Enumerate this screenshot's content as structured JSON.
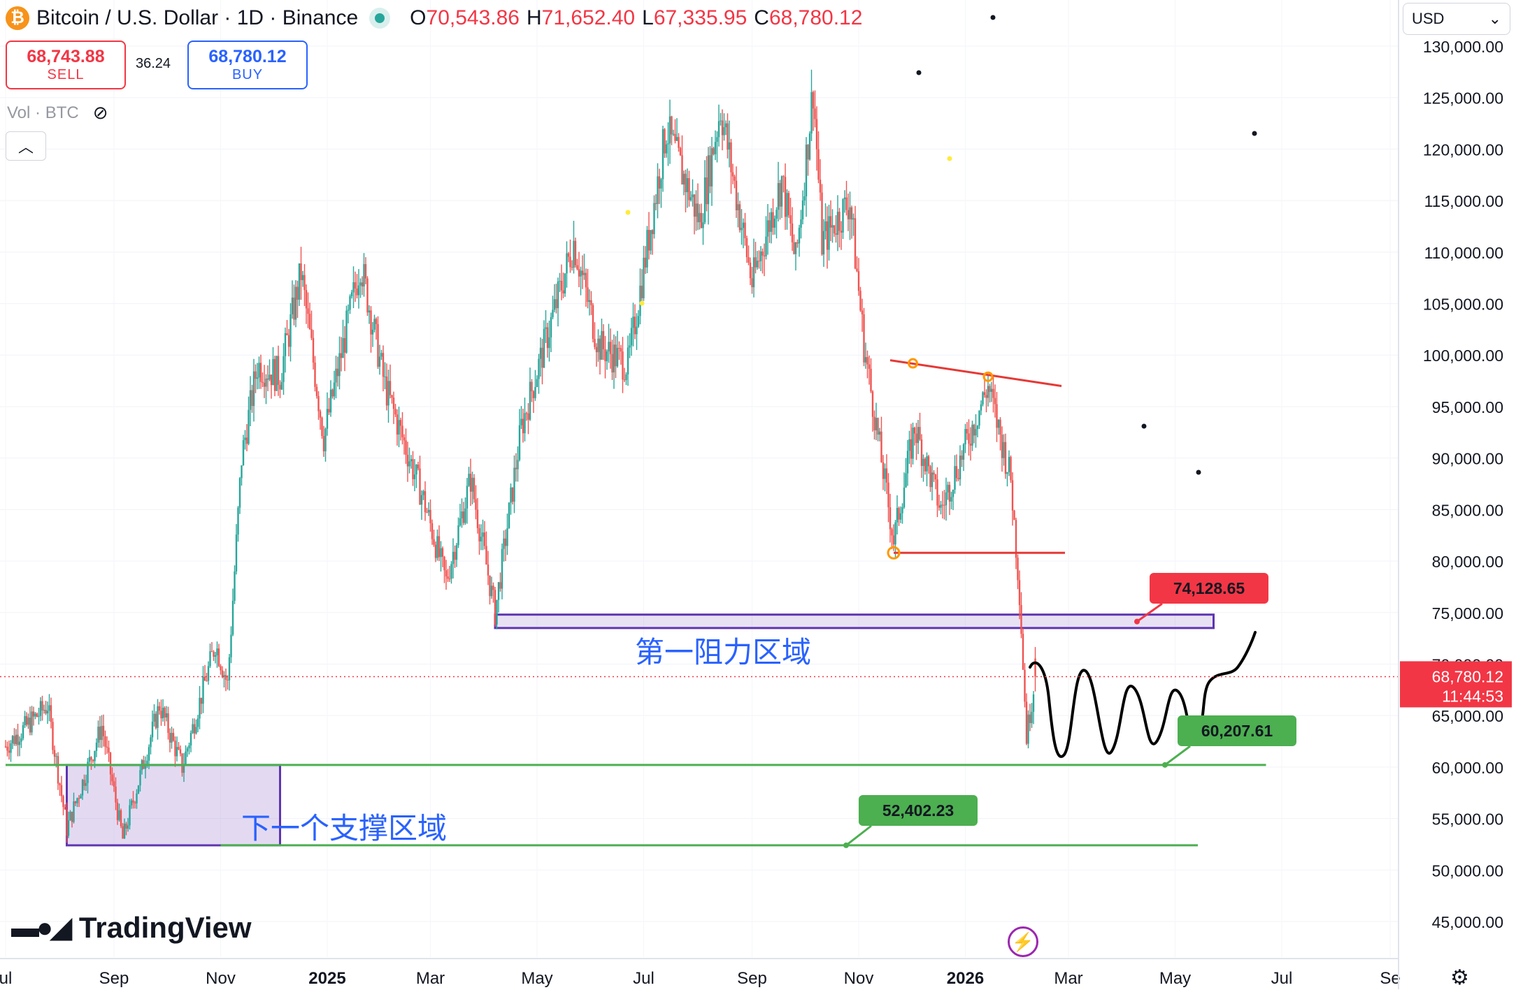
{
  "header": {
    "symbol_title": "Bitcoin / U.S. Dollar · 1D · Binance",
    "ohlc": [
      {
        "k": "O",
        "v": "70,543.86"
      },
      {
        "k": "H",
        "v": "71,652.40"
      },
      {
        "k": "L",
        "v": "67,335.95"
      },
      {
        "k": "C",
        "v": "68,780.12"
      }
    ]
  },
  "trade": {
    "sell_price": "68,743.88",
    "sell_label": "SELL",
    "spread": "36.24",
    "buy_price": "68,780.12",
    "buy_label": "BUY"
  },
  "volume_label": "Vol · BTC",
  "currency": "USD",
  "brand": "TradingView",
  "chart_data": {
    "type": "candlestick",
    "title": "Bitcoin / U.S. Dollar · 1D · Binance",
    "ylim": [
      40000,
      132000
    ],
    "y_ticks": [
      45000,
      50000,
      55000,
      60000,
      65000,
      70000,
      75000,
      80000,
      85000,
      90000,
      95000,
      100000,
      105000,
      110000,
      115000,
      120000,
      125000,
      130000
    ],
    "y_tick_labels": [
      "45,000.00",
      "50,000.00",
      "55,000.00",
      "60,000.00",
      "65,000.00",
      "70,000.00",
      "75,000.00",
      "80,000.00",
      "85,000.00",
      "90,000.00",
      "95,000.00",
      "100,000.00",
      "105,000.00",
      "110,000.00",
      "115,000.00",
      "120,000.00",
      "125,000.00",
      "130,000.00"
    ],
    "x_ticks": [
      {
        "label": "ul",
        "date": "2024-07-01"
      },
      {
        "label": "Sep",
        "date": "2024-09-01"
      },
      {
        "label": "Nov",
        "date": "2024-11-01"
      },
      {
        "label": "2025",
        "date": "2025-01-01"
      },
      {
        "label": "Mar",
        "date": "2025-03-01"
      },
      {
        "label": "May",
        "date": "2025-05-01"
      },
      {
        "label": "Jul",
        "date": "2025-07-01"
      },
      {
        "label": "Sep",
        "date": "2025-09-01"
      },
      {
        "label": "Nov",
        "date": "2025-11-01"
      },
      {
        "label": "2026",
        "date": "2026-01-01"
      },
      {
        "label": "Mar",
        "date": "2026-03-01"
      },
      {
        "label": "May",
        "date": "2026-05-01"
      },
      {
        "label": "Jul",
        "date": "2026-07-01"
      },
      {
        "label": "Se",
        "date": "2026-09-01"
      }
    ],
    "price_path": [
      [
        "2024-07-01",
        62000
      ],
      [
        "2024-07-25",
        66000
      ],
      [
        "2024-08-05",
        54000
      ],
      [
        "2024-08-25",
        64000
      ],
      [
        "2024-09-06",
        53000
      ],
      [
        "2024-09-27",
        66000
      ],
      [
        "2024-10-10",
        60000
      ],
      [
        "2024-10-29",
        72000
      ],
      [
        "2024-11-05",
        68000
      ],
      [
        "2024-11-13",
        90000
      ],
      [
        "2024-11-22",
        99000
      ],
      [
        "2024-12-05",
        98000
      ],
      [
        "2024-12-17",
        108000
      ],
      [
        "2024-12-30",
        92000
      ],
      [
        "2025-01-20",
        109000
      ],
      [
        "2025-02-03",
        97000
      ],
      [
        "2025-02-25",
        86000
      ],
      [
        "2025-03-10",
        78000
      ],
      [
        "2025-03-24",
        88000
      ],
      [
        "2025-04-07",
        75000
      ],
      [
        "2025-04-22",
        93000
      ],
      [
        "2025-05-22",
        111000
      ],
      [
        "2025-06-05",
        101000
      ],
      [
        "2025-06-22",
        99000
      ],
      [
        "2025-07-14",
        122000
      ],
      [
        "2025-08-02",
        113000
      ],
      [
        "2025-08-14",
        124000
      ],
      [
        "2025-09-01",
        107000
      ],
      [
        "2025-09-18",
        117000
      ],
      [
        "2025-09-26",
        109000
      ],
      [
        "2025-10-06",
        126000
      ],
      [
        "2025-10-11",
        111000
      ],
      [
        "2025-10-27",
        115000
      ],
      [
        "2025-11-04",
        101000
      ],
      [
        "2025-11-21",
        82000
      ],
      [
        "2025-12-03",
        93000
      ],
      [
        "2025-12-18",
        85000
      ],
      [
        "2026-01-05",
        93000
      ],
      [
        "2026-01-14",
        97000
      ],
      [
        "2026-01-27",
        88000
      ],
      [
        "2026-02-01",
        77000
      ],
      [
        "2026-02-05",
        63000
      ],
      [
        "2026-02-10",
        68780
      ]
    ],
    "last_candle": {
      "open": 70543.86,
      "high": 71652.4,
      "low": 67335.95,
      "close": 68780.12
    },
    "last_price_label": "68,780.12",
    "countdown": "11:44:53",
    "annotations": {
      "resistance_zone": {
        "low": 73500,
        "high": 74800,
        "from": "2025-04-07",
        "to": "2026-05-23",
        "label": "第一阻力区域"
      },
      "support_zone": {
        "low": 52400,
        "high": 60200,
        "from": "2024-08-05",
        "to": "2024-12-05",
        "label": "下一个支撑区域"
      },
      "price_labels": [
        {
          "text": "74,128.65",
          "value": 74128.65,
          "color": "#f23645"
        },
        {
          "text": "60,207.61",
          "value": 60207.61,
          "color": "#4caf50"
        },
        {
          "text": "52,402.23",
          "value": 52402.23,
          "color": "#4caf50"
        }
      ],
      "support_lines": [
        {
          "value": 60207.61,
          "from": "2024-07-01",
          "to": "2026-06-22"
        },
        {
          "value": 52402.23,
          "from": "2024-11-01",
          "to": "2026-05-14"
        }
      ],
      "triangle_top": {
        "from": [
          "2025-11-19",
          99500
        ],
        "to": [
          "2026-02-25",
          97000
        ]
      },
      "triangle_bottom": {
        "from": [
          "2025-11-21",
          80800
        ],
        "to": [
          "2026-02-27",
          80800
        ]
      }
    },
    "colors": {
      "up": "#26a69a",
      "down": "#ef5350",
      "zone": "#7e57c2",
      "support": "#4caf50",
      "resistance": "#e53935",
      "projection": "#000000"
    }
  }
}
